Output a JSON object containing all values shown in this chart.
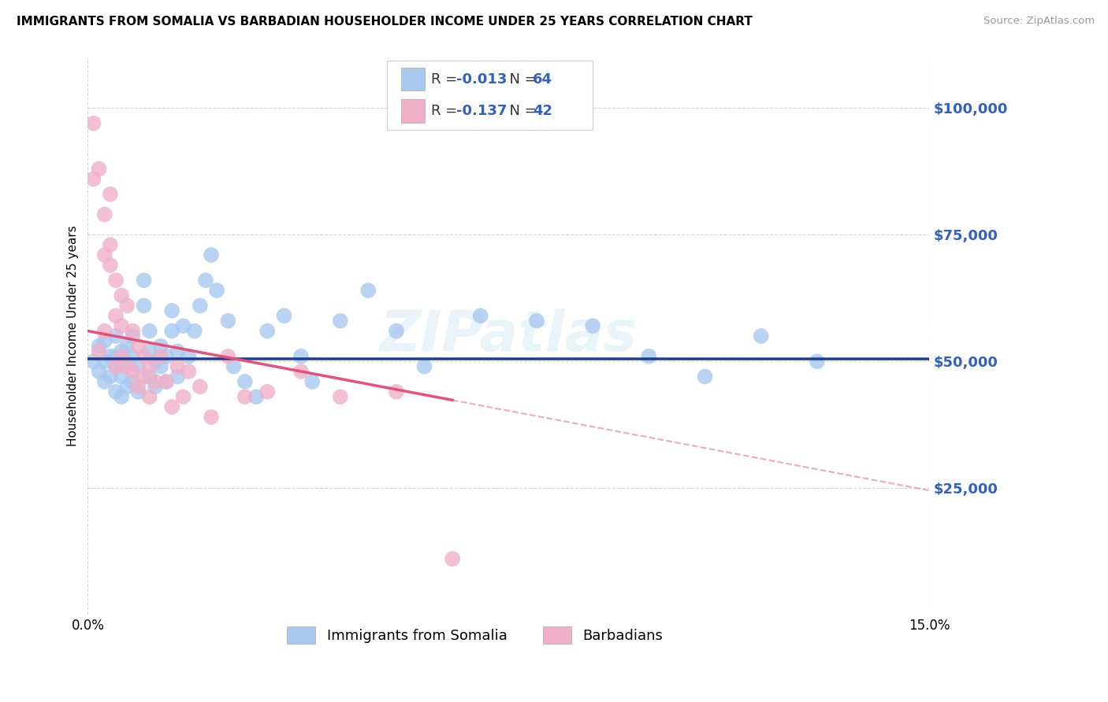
{
  "title": "IMMIGRANTS FROM SOMALIA VS BARBADIAN HOUSEHOLDER INCOME UNDER 25 YEARS CORRELATION CHART",
  "source": "Source: ZipAtlas.com",
  "ylabel": "Householder Income Under 25 years",
  "x_min": 0.0,
  "x_max": 0.15,
  "y_min": 0,
  "y_max": 110000,
  "y_ticks": [
    25000,
    50000,
    75000,
    100000
  ],
  "y_tick_labels": [
    "$25,000",
    "$50,000",
    "$75,000",
    "$100,000"
  ],
  "x_tick_labels": [
    "0.0%",
    "15.0%"
  ],
  "series1_label": "Immigrants from Somalia",
  "series1_R": "-0.013",
  "series1_N": "64",
  "series1_color": "#a8c8f0",
  "series1_line_color": "#1a3d8f",
  "series2_label": "Barbadians",
  "series2_R": "-0.137",
  "series2_N": "42",
  "series2_color": "#f0b0c8",
  "series2_line_color": "#e8507a",
  "background_color": "#ffffff",
  "grid_color": "#cccccc",
  "watermark": "ZIPatlas",
  "title_fontsize": 11,
  "legend_text_color": "#3060c0",
  "legend_label_color": "#333333",
  "series1_x": [
    0.001,
    0.002,
    0.002,
    0.003,
    0.003,
    0.003,
    0.004,
    0.004,
    0.005,
    0.005,
    0.005,
    0.005,
    0.006,
    0.006,
    0.006,
    0.007,
    0.007,
    0.007,
    0.008,
    0.008,
    0.008,
    0.009,
    0.009,
    0.01,
    0.01,
    0.011,
    0.011,
    0.011,
    0.012,
    0.012,
    0.013,
    0.013,
    0.014,
    0.014,
    0.015,
    0.015,
    0.016,
    0.016,
    0.017,
    0.018,
    0.019,
    0.02,
    0.021,
    0.022,
    0.023,
    0.025,
    0.026,
    0.028,
    0.03,
    0.032,
    0.035,
    0.038,
    0.04,
    0.045,
    0.05,
    0.055,
    0.06,
    0.07,
    0.08,
    0.09,
    0.1,
    0.11,
    0.12,
    0.13
  ],
  "series1_y": [
    50000,
    48000,
    53000,
    46000,
    50000,
    54000,
    47000,
    51000,
    44000,
    49000,
    51000,
    55000,
    43000,
    47000,
    52000,
    45000,
    50000,
    53000,
    46000,
    51000,
    55000,
    44000,
    49000,
    61000,
    66000,
    47000,
    52000,
    56000,
    45000,
    50000,
    49000,
    53000,
    46000,
    51000,
    56000,
    60000,
    47000,
    52000,
    57000,
    51000,
    56000,
    61000,
    66000,
    71000,
    64000,
    58000,
    49000,
    46000,
    43000,
    56000,
    59000,
    51000,
    46000,
    58000,
    64000,
    56000,
    49000,
    59000,
    58000,
    57000,
    51000,
    47000,
    55000,
    50000
  ],
  "series2_x": [
    0.001,
    0.001,
    0.002,
    0.002,
    0.003,
    0.003,
    0.004,
    0.004,
    0.005,
    0.005,
    0.005,
    0.006,
    0.006,
    0.006,
    0.007,
    0.007,
    0.008,
    0.008,
    0.009,
    0.009,
    0.01,
    0.01,
    0.011,
    0.011,
    0.012,
    0.013,
    0.014,
    0.015,
    0.016,
    0.017,
    0.018,
    0.02,
    0.022,
    0.025,
    0.028,
    0.032,
    0.038,
    0.045,
    0.055,
    0.065,
    0.003,
    0.004
  ],
  "series2_y": [
    97000,
    86000,
    88000,
    52000,
    79000,
    56000,
    73000,
    69000,
    66000,
    59000,
    49000,
    63000,
    57000,
    51000,
    61000,
    49000,
    56000,
    48000,
    53000,
    45000,
    51000,
    47000,
    49000,
    43000,
    46000,
    51000,
    46000,
    41000,
    49000,
    43000,
    48000,
    45000,
    39000,
    51000,
    43000,
    44000,
    48000,
    43000,
    44000,
    11000,
    71000,
    83000
  ],
  "series1_line_slope": -130,
  "series1_line_intercept": 50500,
  "series2_line_slope": -210000,
  "series2_line_intercept": 56000
}
